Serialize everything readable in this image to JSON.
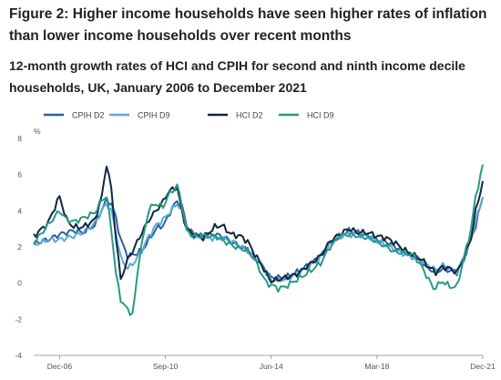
{
  "figure": {
    "title": "Figure 2: Higher income households have seen higher rates of inflation than lower income households over recent months",
    "subtitle": "12-month growth rates of HCI and CPIH for second and ninth income decile households, UK, January 2006 to December 2021"
  },
  "chart_data": {
    "type": "line",
    "ylabel": "%",
    "xlabel": "",
    "ylim": [
      -4,
      8
    ],
    "yticks": [
      -4,
      -2,
      0,
      2,
      4,
      6,
      8
    ],
    "x_tick_labels": [
      "Dec-06",
      "Sep-10",
      "Jun-14",
      "Mar-18",
      "Dec-21"
    ],
    "x_tick_index": [
      11,
      56,
      101,
      146,
      191
    ],
    "grid": false,
    "legend_position": "top",
    "x_start_label": "Jan-06",
    "x_count": 192,
    "series": [
      {
        "name": "CPIH D2",
        "color": "#2e5f9e",
        "points": [
          [
            0,
            2.2
          ],
          [
            6,
            2.4
          ],
          [
            11,
            2.7
          ],
          [
            17,
            2.9
          ],
          [
            21,
            2.8
          ],
          [
            26,
            3.2
          ],
          [
            29,
            4.1
          ],
          [
            31,
            4.6
          ],
          [
            33,
            4.4
          ],
          [
            35,
            3.6
          ],
          [
            37,
            2.4
          ],
          [
            40,
            1.5
          ],
          [
            43,
            1.6
          ],
          [
            46,
            1.8
          ],
          [
            49,
            2.4
          ],
          [
            52,
            3.0
          ],
          [
            55,
            3.2
          ],
          [
            57,
            3.6
          ],
          [
            59,
            4.2
          ],
          [
            61,
            4.5
          ],
          [
            63,
            4.3
          ],
          [
            65,
            3.2
          ],
          [
            68,
            2.7
          ],
          [
            72,
            2.6
          ],
          [
            77,
            2.7
          ],
          [
            80,
            2.6
          ],
          [
            84,
            2.3
          ],
          [
            88,
            2.0
          ],
          [
            91,
            1.8
          ],
          [
            94,
            1.4
          ],
          [
            97,
            1.0
          ],
          [
            99,
            0.6
          ],
          [
            101,
            0.3
          ],
          [
            104,
            0.3
          ],
          [
            107,
            0.3
          ],
          [
            112,
            0.6
          ],
          [
            117,
            1.0
          ],
          [
            122,
            1.5
          ],
          [
            126,
            2.2
          ],
          [
            130,
            2.6
          ],
          [
            134,
            2.9
          ],
          [
            138,
            2.8
          ],
          [
            142,
            2.6
          ],
          [
            146,
            2.4
          ],
          [
            150,
            2.3
          ],
          [
            154,
            2.0
          ],
          [
            158,
            1.7
          ],
          [
            162,
            1.5
          ],
          [
            165,
            1.2
          ],
          [
            168,
            0.8
          ],
          [
            171,
            0.6
          ],
          [
            174,
            0.8
          ],
          [
            177,
            0.7
          ],
          [
            180,
            0.6
          ],
          [
            183,
            1.4
          ],
          [
            186,
            2.4
          ],
          [
            188,
            3.2
          ],
          [
            191,
            4.8
          ]
        ]
      },
      {
        "name": "CPIH D9",
        "color": "#5aa8d6",
        "points": [
          [
            0,
            2.1
          ],
          [
            6,
            2.4
          ],
          [
            11,
            2.4
          ],
          [
            17,
            2.6
          ],
          [
            21,
            2.8
          ],
          [
            26,
            3.3
          ],
          [
            29,
            4.0
          ],
          [
            31,
            4.4
          ],
          [
            33,
            4.0
          ],
          [
            35,
            2.8
          ],
          [
            37,
            1.4
          ],
          [
            40,
            0.8
          ],
          [
            43,
            1.2
          ],
          [
            46,
            1.8
          ],
          [
            49,
            2.6
          ],
          [
            52,
            3.2
          ],
          [
            55,
            3.5
          ],
          [
            57,
            3.8
          ],
          [
            59,
            4.1
          ],
          [
            61,
            4.4
          ],
          [
            63,
            4.0
          ],
          [
            65,
            3.0
          ],
          [
            68,
            2.6
          ],
          [
            72,
            2.5
          ],
          [
            77,
            2.5
          ],
          [
            80,
            2.5
          ],
          [
            84,
            2.3
          ],
          [
            88,
            2.0
          ],
          [
            91,
            1.8
          ],
          [
            94,
            1.4
          ],
          [
            97,
            1.0
          ],
          [
            99,
            0.5
          ],
          [
            101,
            0.2
          ],
          [
            104,
            0.2
          ],
          [
            107,
            0.2
          ],
          [
            112,
            0.5
          ],
          [
            117,
            0.9
          ],
          [
            122,
            1.4
          ],
          [
            126,
            2.1
          ],
          [
            130,
            2.6
          ],
          [
            134,
            2.7
          ],
          [
            138,
            2.7
          ],
          [
            142,
            2.6
          ],
          [
            146,
            2.3
          ],
          [
            150,
            2.1
          ],
          [
            154,
            1.8
          ],
          [
            158,
            1.6
          ],
          [
            162,
            1.4
          ],
          [
            165,
            1.2
          ],
          [
            168,
            1.0
          ],
          [
            171,
            0.7
          ],
          [
            174,
            1.0
          ],
          [
            177,
            0.8
          ],
          [
            180,
            0.6
          ],
          [
            183,
            1.3
          ],
          [
            186,
            2.5
          ],
          [
            188,
            3.4
          ],
          [
            191,
            4.8
          ]
        ]
      },
      {
        "name": "HCI D2",
        "color": "#12263f",
        "points": [
          [
            0,
            2.6
          ],
          [
            6,
            3.3
          ],
          [
            11,
            4.8
          ],
          [
            14,
            3.5
          ],
          [
            17,
            3.1
          ],
          [
            21,
            3.1
          ],
          [
            26,
            3.5
          ],
          [
            29,
            4.8
          ],
          [
            31,
            6.6
          ],
          [
            33,
            5.2
          ],
          [
            35,
            2.5
          ],
          [
            37,
            0.2
          ],
          [
            40,
            1.3
          ],
          [
            43,
            2.0
          ],
          [
            46,
            2.8
          ],
          [
            49,
            3.5
          ],
          [
            52,
            4.0
          ],
          [
            55,
            4.5
          ],
          [
            57,
            5.0
          ],
          [
            59,
            5.2
          ],
          [
            61,
            5.3
          ],
          [
            63,
            4.0
          ],
          [
            65,
            3.0
          ],
          [
            68,
            2.7
          ],
          [
            72,
            2.5
          ],
          [
            77,
            3.1
          ],
          [
            80,
            3.2
          ],
          [
            84,
            2.7
          ],
          [
            88,
            2.6
          ],
          [
            91,
            2.3
          ],
          [
            94,
            1.6
          ],
          [
            97,
            1.0
          ],
          [
            99,
            0.5
          ],
          [
            101,
            0.1
          ],
          [
            104,
            0.2
          ],
          [
            107,
            0.3
          ],
          [
            112,
            0.5
          ],
          [
            117,
            1.0
          ],
          [
            122,
            1.5
          ],
          [
            126,
            2.3
          ],
          [
            130,
            2.7
          ],
          [
            134,
            3.0
          ],
          [
            138,
            2.8
          ],
          [
            142,
            2.8
          ],
          [
            146,
            2.6
          ],
          [
            150,
            2.5
          ],
          [
            154,
            2.2
          ],
          [
            158,
            1.8
          ],
          [
            162,
            1.5
          ],
          [
            165,
            1.3
          ],
          [
            168,
            0.9
          ],
          [
            171,
            0.6
          ],
          [
            174,
            0.9
          ],
          [
            177,
            0.8
          ],
          [
            180,
            0.6
          ],
          [
            183,
            1.4
          ],
          [
            186,
            2.5
          ],
          [
            188,
            4.0
          ],
          [
            191,
            5.6
          ]
        ]
      },
      {
        "name": "HCI D9",
        "color": "#279a86",
        "points": [
          [
            0,
            2.2
          ],
          [
            6,
            3.2
          ],
          [
            11,
            4.0
          ],
          [
            14,
            3.5
          ],
          [
            17,
            3.4
          ],
          [
            21,
            3.6
          ],
          [
            26,
            3.9
          ],
          [
            29,
            4.6
          ],
          [
            31,
            4.8
          ],
          [
            33,
            3.0
          ],
          [
            35,
            0.5
          ],
          [
            37,
            -0.9
          ],
          [
            40,
            -1.5
          ],
          [
            42,
            -1.7
          ],
          [
            43,
            -0.8
          ],
          [
            45,
            1.5
          ],
          [
            47,
            2.8
          ],
          [
            49,
            4.1
          ],
          [
            52,
            4.4
          ],
          [
            55,
            4.2
          ],
          [
            57,
            4.8
          ],
          [
            59,
            5.1
          ],
          [
            61,
            5.4
          ],
          [
            63,
            4.4
          ],
          [
            65,
            2.9
          ],
          [
            68,
            2.6
          ],
          [
            72,
            2.6
          ],
          [
            77,
            2.6
          ],
          [
            80,
            2.4
          ],
          [
            84,
            2.1
          ],
          [
            88,
            1.9
          ],
          [
            91,
            1.8
          ],
          [
            94,
            1.3
          ],
          [
            97,
            0.5
          ],
          [
            99,
            0.0
          ],
          [
            101,
            -0.1
          ],
          [
            104,
            -0.3
          ],
          [
            107,
            -0.2
          ],
          [
            112,
            0.2
          ],
          [
            117,
            0.6
          ],
          [
            122,
            1.1
          ],
          [
            126,
            2.0
          ],
          [
            130,
            2.6
          ],
          [
            134,
            2.7
          ],
          [
            138,
            2.6
          ],
          [
            142,
            2.5
          ],
          [
            146,
            2.3
          ],
          [
            150,
            2.0
          ],
          [
            154,
            1.7
          ],
          [
            158,
            1.7
          ],
          [
            162,
            1.5
          ],
          [
            165,
            0.9
          ],
          [
            168,
            0.2
          ],
          [
            170,
            -0.3
          ],
          [
            174,
            0.1
          ],
          [
            177,
            -0.2
          ],
          [
            180,
            -0.2
          ],
          [
            183,
            1.4
          ],
          [
            186,
            3.0
          ],
          [
            188,
            4.8
          ],
          [
            191,
            6.5
          ]
        ]
      }
    ]
  }
}
